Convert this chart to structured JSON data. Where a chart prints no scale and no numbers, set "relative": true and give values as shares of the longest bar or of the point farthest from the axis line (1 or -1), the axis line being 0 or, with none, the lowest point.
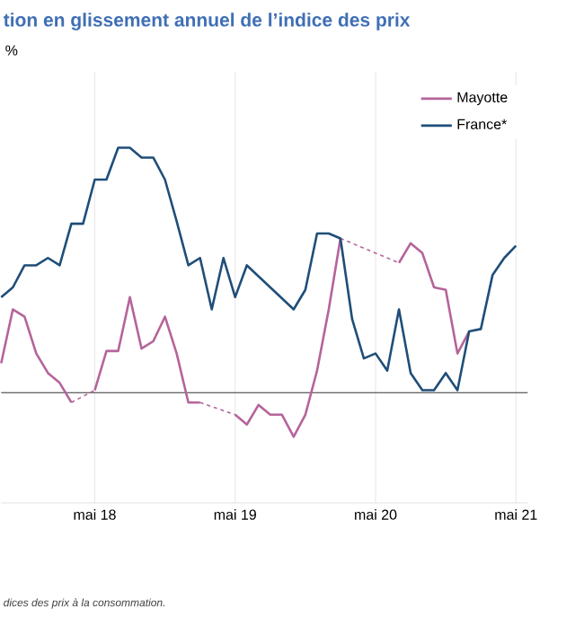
{
  "chart_data": {
    "type": "line",
    "title": "tion en glissement annuel de l’indice des prix",
    "relative": true,
    "grid": "x",
    "legend": "top right",
    "xlim": [
      "2017-09",
      "2021-06"
    ],
    "xticks": [
      {
        "value": "2018-05",
        "label": "mai 18"
      },
      {
        "value": "2019-05",
        "label": "mai 19"
      },
      {
        "value": "2020-05",
        "label": "mai 20"
      },
      {
        "value": "2021-05",
        "label": "mai 21"
      }
    ],
    "series": [
      {
        "name": "Mayotte",
        "color": "#b5649a",
        "x": [
          "2017-09",
          "2017-10",
          "2017-11",
          "2017-12",
          "2018-01",
          "2018-02",
          "2018-03",
          "2018-04",
          "2018-05",
          "2018-06",
          "2018-07",
          "2018-08",
          "2018-09",
          "2018-10",
          "2018-11",
          "2018-12",
          "2019-01",
          "2019-02",
          "2019-03",
          "2019-04",
          "2019-05",
          "2019-06",
          "2019-07",
          "2019-08",
          "2019-09",
          "2019-10",
          "2019-11",
          "2019-12",
          "2020-01",
          "2020-02",
          "2020-03",
          "2020-04",
          "2020-05",
          "2020-06",
          "2020-07",
          "2020-08",
          "2020-09",
          "2020-10",
          "2020-11",
          "2020-12",
          "2021-01"
        ],
        "values": [
          0.12,
          0.34,
          0.31,
          0.16,
          0.08,
          0.04,
          -0.04,
          null,
          0.01,
          0.17,
          0.17,
          0.39,
          0.18,
          0.21,
          0.31,
          0.16,
          -0.04,
          -0.04,
          null,
          null,
          -0.09,
          -0.13,
          -0.05,
          -0.09,
          -0.09,
          -0.18,
          -0.09,
          0.09,
          0.34,
          0.63,
          null,
          null,
          null,
          null,
          0.53,
          0.61,
          0.57,
          0.43,
          0.42,
          0.16,
          0.25
        ]
      },
      {
        "name": "France*",
        "color": "#1f4e79",
        "x": [
          "2017-09",
          "2017-10",
          "2017-11",
          "2017-12",
          "2018-01",
          "2018-02",
          "2018-03",
          "2018-04",
          "2018-05",
          "2018-06",
          "2018-07",
          "2018-08",
          "2018-09",
          "2018-10",
          "2018-11",
          "2018-12",
          "2019-01",
          "2019-02",
          "2019-03",
          "2019-04",
          "2019-05",
          "2019-06",
          "2019-10",
          "2019-11",
          "2019-12",
          "2020-01",
          "2020-02",
          "2020-03",
          "2020-04",
          "2020-05",
          "2020-06",
          "2020-07",
          "2020-08",
          "2020-09",
          "2020-10",
          "2020-11",
          "2020-12",
          "2021-01",
          "2021-02",
          "2021-03",
          "2021-04",
          "2021-05"
        ],
        "values": [
          0.39,
          0.43,
          0.52,
          0.52,
          0.55,
          0.52,
          0.69,
          0.69,
          0.87,
          0.87,
          1,
          1,
          0.96,
          0.96,
          0.87,
          0.7,
          0.52,
          0.55,
          0.34,
          0.55,
          0.39,
          0.52,
          0.34,
          0.42,
          0.65,
          0.65,
          0.63,
          0.3,
          0.14,
          0.16,
          0.09,
          0.34,
          0.08,
          0.01,
          0.01,
          0.08,
          0.01,
          0.25,
          0.26,
          0.48,
          0.55,
          0.6
        ]
      }
    ],
    "annotations": [
      "%",
      "dices des prix à la consommation."
    ]
  }
}
